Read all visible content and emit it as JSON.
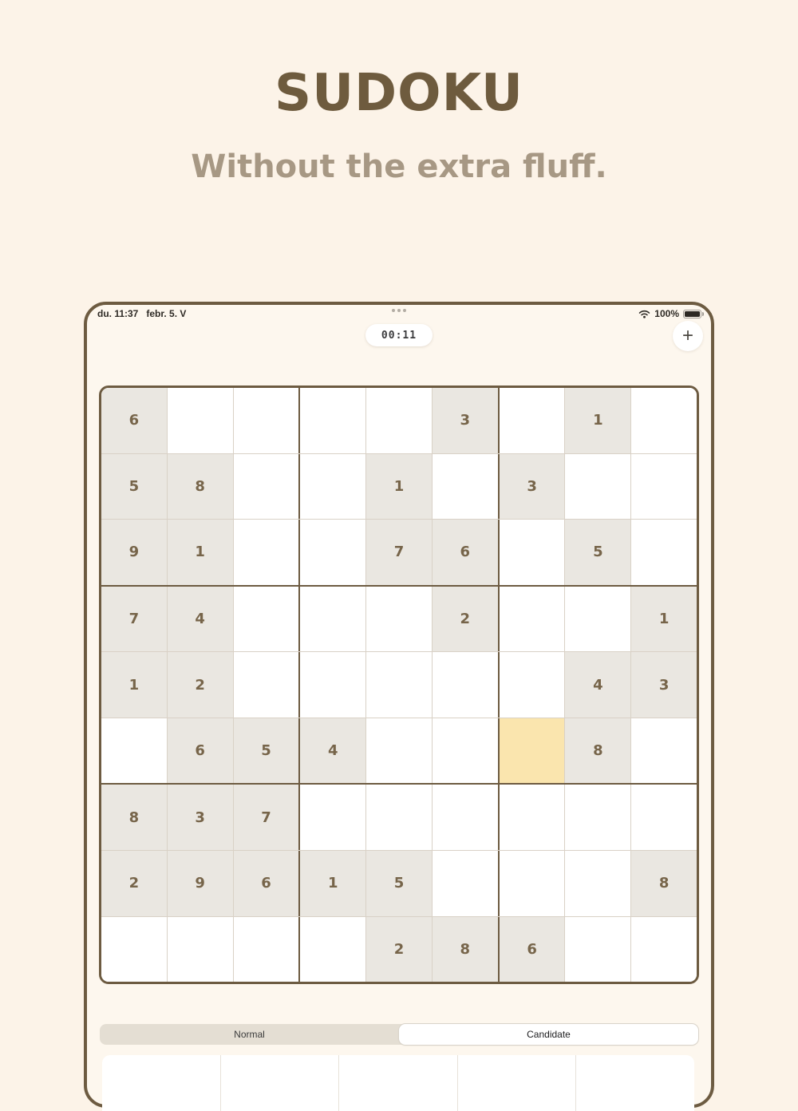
{
  "hero": {
    "title": "SUDOKU",
    "subtitle": "Without the extra fluff."
  },
  "device": {
    "statusbar": {
      "time": "du. 11:37",
      "date": "febr. 5. V",
      "battery_percent": "100%"
    },
    "timer": "00:11",
    "add_label": "+"
  },
  "board": {
    "selected": {
      "row": 6,
      "col": 7
    },
    "rows": [
      [
        "6",
        "",
        "",
        "",
        "",
        "3",
        "",
        "1",
        ""
      ],
      [
        "5",
        "8",
        "",
        "",
        "1",
        "",
        "3",
        "",
        ""
      ],
      [
        "9",
        "1",
        "",
        "",
        "7",
        "6",
        "",
        "5",
        ""
      ],
      [
        "7",
        "4",
        "",
        "",
        "",
        "2",
        "",
        "",
        "1"
      ],
      [
        "1",
        "2",
        "",
        "",
        "",
        "",
        "",
        "4",
        "3"
      ],
      [
        "",
        "6",
        "5",
        "4",
        "",
        "",
        "",
        "8",
        ""
      ],
      [
        "8",
        "3",
        "7",
        "",
        "",
        "",
        "",
        "",
        ""
      ],
      [
        "2",
        "9",
        "6",
        "1",
        "5",
        "",
        "",
        "",
        "8"
      ],
      [
        "",
        "",
        "",
        "",
        "2",
        "8",
        "6",
        "",
        ""
      ]
    ]
  },
  "controls": {
    "segments": [
      {
        "label": "Normal",
        "selected": false
      },
      {
        "label": "Candidate",
        "selected": true
      }
    ],
    "numpad_visible_columns": 5
  },
  "colors": {
    "page_background": "#fcf3e8",
    "device_background": "#fdf7ee",
    "frame_brown": "#6d5b41",
    "title_brown": "#6e5b3e",
    "subtitle_taupe": "#a79884",
    "given_cell": "#eae7e1",
    "selected_cell": "#fae5ae",
    "digit_brown": "#77654a",
    "thin_line": "#d9d1c6",
    "segment_track": "#e4ded3"
  }
}
